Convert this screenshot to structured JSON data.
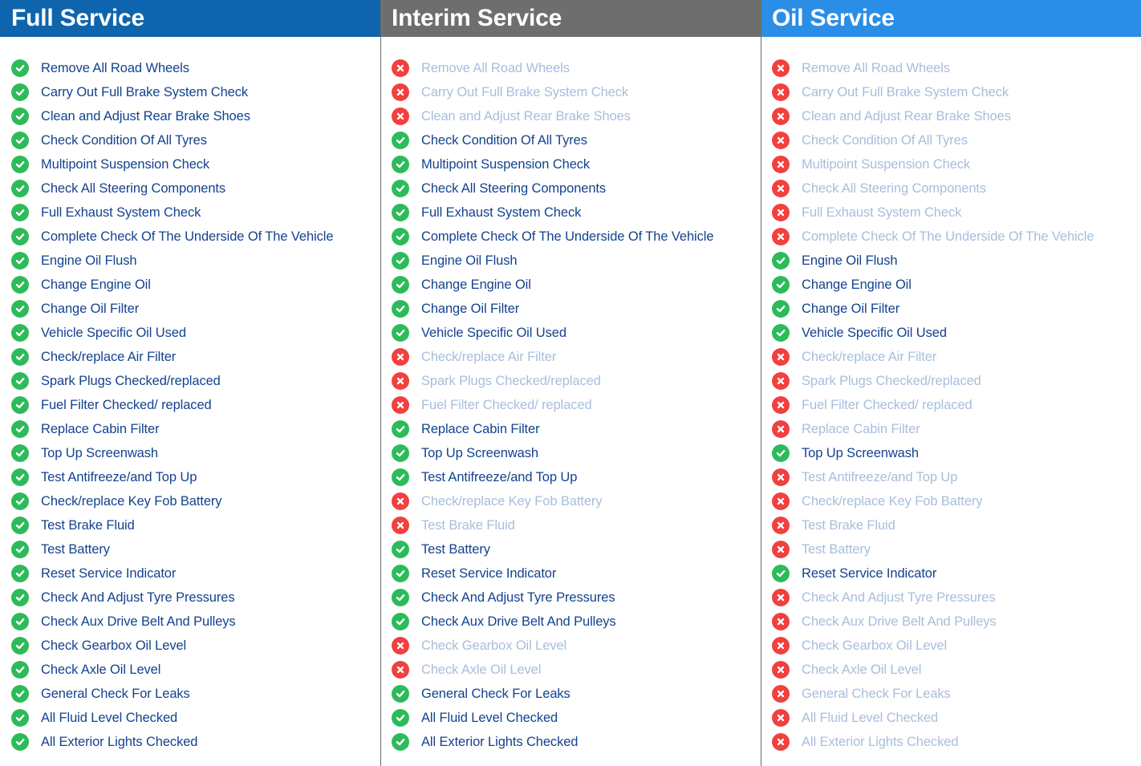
{
  "colors": {
    "full_header": "#0f65ad",
    "interim_header": "#6e6e6e",
    "oil_header": "#2b8ee6",
    "check": "#2dbb5a",
    "cross": "#f2403e"
  },
  "icons": {
    "included": "check-circle-icon",
    "excluded": "x-circle-icon"
  },
  "columns": [
    {
      "id": "full",
      "title": "Full Service",
      "items": [
        {
          "label": "Remove All Road Wheels",
          "included": true
        },
        {
          "label": "Carry Out Full Brake System Check",
          "included": true
        },
        {
          "label": "Clean and Adjust Rear Brake Shoes",
          "included": true
        },
        {
          "label": "Check Condition Of All Tyres",
          "included": true
        },
        {
          "label": "Multipoint Suspension Check",
          "included": true
        },
        {
          "label": "Check All Steering Components",
          "included": true
        },
        {
          "label": "Full Exhaust System Check",
          "included": true
        },
        {
          "label": "Complete Check Of The Underside Of The Vehicle",
          "included": true
        },
        {
          "label": "Engine Oil Flush",
          "included": true
        },
        {
          "label": "Change Engine Oil",
          "included": true
        },
        {
          "label": "Change Oil Filter",
          "included": true
        },
        {
          "label": "Vehicle Specific Oil Used",
          "included": true
        },
        {
          "label": "Check/replace Air Filter",
          "included": true
        },
        {
          "label": "Spark Plugs Checked/replaced",
          "included": true
        },
        {
          "label": "Fuel Filter Checked/ replaced",
          "included": true
        },
        {
          "label": "Replace Cabin Filter",
          "included": true
        },
        {
          "label": "Top Up Screenwash",
          "included": true
        },
        {
          "label": "Test Antifreeze/and Top Up",
          "included": true
        },
        {
          "label": "Check/replace Key Fob Battery",
          "included": true
        },
        {
          "label": "Test Brake Fluid",
          "included": true
        },
        {
          "label": "Test Battery",
          "included": true
        },
        {
          "label": "Reset Service Indicator",
          "included": true
        },
        {
          "label": "Check And Adjust Tyre Pressures",
          "included": true
        },
        {
          "label": "Check Aux Drive Belt And Pulleys",
          "included": true
        },
        {
          "label": "Check Gearbox Oil Level",
          "included": true
        },
        {
          "label": "Check Axle Oil Level",
          "included": true
        },
        {
          "label": "General Check For Leaks",
          "included": true
        },
        {
          "label": "All Fluid Level Checked",
          "included": true
        },
        {
          "label": "All Exterior Lights Checked",
          "included": true
        }
      ]
    },
    {
      "id": "interim",
      "title": "Interim Service",
      "items": [
        {
          "label": "Remove All Road Wheels",
          "included": false
        },
        {
          "label": "Carry Out Full Brake System Check",
          "included": false
        },
        {
          "label": "Clean and Adjust Rear Brake Shoes",
          "included": false
        },
        {
          "label": "Check Condition Of All Tyres",
          "included": true
        },
        {
          "label": "Multipoint Suspension Check",
          "included": true
        },
        {
          "label": "Check All Steering Components",
          "included": true
        },
        {
          "label": "Full Exhaust System Check",
          "included": true
        },
        {
          "label": "Complete Check Of The Underside Of The Vehicle",
          "included": true
        },
        {
          "label": "Engine Oil Flush",
          "included": true
        },
        {
          "label": "Change Engine Oil",
          "included": true
        },
        {
          "label": "Change Oil Filter",
          "included": true
        },
        {
          "label": "Vehicle Specific Oil Used",
          "included": true
        },
        {
          "label": "Check/replace Air Filter",
          "included": false
        },
        {
          "label": "Spark Plugs Checked/replaced",
          "included": false
        },
        {
          "label": "Fuel Filter Checked/ replaced",
          "included": false
        },
        {
          "label": "Replace Cabin Filter",
          "included": true
        },
        {
          "label": "Top Up Screenwash",
          "included": true
        },
        {
          "label": "Test Antifreeze/and Top Up",
          "included": true
        },
        {
          "label": "Check/replace Key Fob Battery",
          "included": false
        },
        {
          "label": "Test Brake Fluid",
          "included": false
        },
        {
          "label": "Test Battery",
          "included": true
        },
        {
          "label": "Reset Service Indicator",
          "included": true
        },
        {
          "label": "Check And Adjust Tyre Pressures",
          "included": true
        },
        {
          "label": "Check Aux Drive Belt And Pulleys",
          "included": true
        },
        {
          "label": "Check Gearbox Oil Level",
          "included": false
        },
        {
          "label": "Check Axle Oil Level",
          "included": false
        },
        {
          "label": "General Check For Leaks",
          "included": true
        },
        {
          "label": "All Fluid Level Checked",
          "included": true
        },
        {
          "label": "All Exterior Lights Checked",
          "included": true
        }
      ]
    },
    {
      "id": "oil",
      "title": "Oil Service",
      "items": [
        {
          "label": "Remove All Road Wheels",
          "included": false
        },
        {
          "label": "Carry Out Full Brake System Check",
          "included": false
        },
        {
          "label": "Clean and Adjust Rear Brake Shoes",
          "included": false
        },
        {
          "label": "Check Condition Of All Tyres",
          "included": false
        },
        {
          "label": "Multipoint Suspension Check",
          "included": false
        },
        {
          "label": "Check All Steering Components",
          "included": false
        },
        {
          "label": "Full Exhaust System Check",
          "included": false
        },
        {
          "label": "Complete Check Of The Underside Of The Vehicle",
          "included": false
        },
        {
          "label": "Engine Oil Flush",
          "included": true
        },
        {
          "label": "Change Engine Oil",
          "included": true
        },
        {
          "label": "Change Oil Filter",
          "included": true
        },
        {
          "label": "Vehicle Specific Oil Used",
          "included": true
        },
        {
          "label": "Check/replace Air Filter",
          "included": false
        },
        {
          "label": "Spark Plugs Checked/replaced",
          "included": false
        },
        {
          "label": "Fuel Filter Checked/ replaced",
          "included": false
        },
        {
          "label": "Replace Cabin Filter",
          "included": false
        },
        {
          "label": "Top Up Screenwash",
          "included": true
        },
        {
          "label": "Test Antifreeze/and Top Up",
          "included": false
        },
        {
          "label": "Check/replace Key Fob Battery",
          "included": false
        },
        {
          "label": "Test Brake Fluid",
          "included": false
        },
        {
          "label": "Test Battery",
          "included": false
        },
        {
          "label": "Reset Service Indicator",
          "included": true
        },
        {
          "label": "Check And Adjust Tyre Pressures",
          "included": false
        },
        {
          "label": "Check Aux Drive Belt And Pulleys",
          "included": false
        },
        {
          "label": "Check Gearbox Oil Level",
          "included": false
        },
        {
          "label": "Check Axle Oil Level",
          "included": false
        },
        {
          "label": "General Check For Leaks",
          "included": false
        },
        {
          "label": "All Fluid Level Checked",
          "included": false
        },
        {
          "label": "All Exterior Lights Checked",
          "included": false
        }
      ]
    }
  ]
}
